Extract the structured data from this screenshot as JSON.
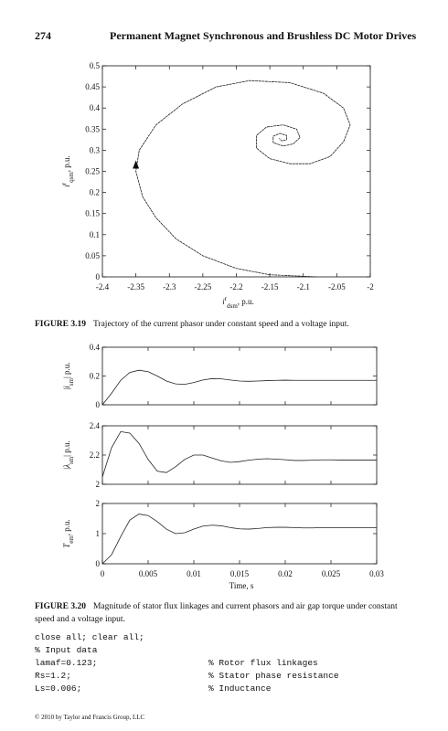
{
  "header": {
    "page_number": "274",
    "title": "Permanent Magnet Synchronous and Brushless DC Motor Drives"
  },
  "chart_data": [
    {
      "type": "line",
      "xlabel": {
        "base": "i",
        "sup": "r",
        "sub": "dsm",
        "unit": ", p.u."
      },
      "ylabel": {
        "base": "i",
        "sup": "r",
        "sub": "qsm",
        "unit": ", p.u."
      },
      "x": [
        -2.08,
        -2.15,
        -2.2,
        -2.25,
        -2.29,
        -2.32,
        -2.34,
        -2.35,
        -2.345,
        -2.32,
        -2.28,
        -2.23,
        -2.18,
        -2.12,
        -2.07,
        -2.04,
        -2.03,
        -2.04,
        -2.06,
        -2.09,
        -2.12,
        -2.15,
        -2.17,
        -2.17,
        -2.155,
        -2.13,
        -2.11,
        -2.105,
        -2.115,
        -2.13,
        -2.145,
        -2.145,
        -2.135,
        -2.125,
        -2.125,
        -2.132,
        -2.136
      ],
      "values": [
        0,
        0.005,
        0.02,
        0.05,
        0.09,
        0.14,
        0.19,
        0.25,
        0.3,
        0.36,
        0.41,
        0.45,
        0.465,
        0.46,
        0.435,
        0.4,
        0.36,
        0.32,
        0.285,
        0.268,
        0.268,
        0.28,
        0.305,
        0.335,
        0.355,
        0.36,
        0.35,
        0.33,
        0.315,
        0.31,
        0.318,
        0.333,
        0.34,
        0.335,
        0.325,
        0.322,
        0.328
      ],
      "color": "#222222",
      "xlim": [
        -2.4,
        -2
      ],
      "xticks": [
        -2.4,
        -2.35,
        -2.3,
        -2.25,
        -2.2,
        -2.15,
        -2.1,
        -2.05,
        -2
      ],
      "ylim": [
        0,
        0.5
      ],
      "yticks": [
        0,
        0.05,
        0.1,
        0.15,
        0.2,
        0.25,
        0.3,
        0.35,
        0.4,
        0.45,
        0.5
      ]
    },
    {
      "type": "line",
      "ylabel": {
        "prefix": "|",
        "base": "i",
        "sub": "sm",
        "unit": "| p.u."
      },
      "x": [
        0,
        0.001,
        0.002,
        0.003,
        0.004,
        0.005,
        0.006,
        0.007,
        0.008,
        0.009,
        0.01,
        0.011,
        0.012,
        0.013,
        0.014,
        0.015,
        0.016,
        0.017,
        0.018,
        0.019,
        0.02,
        0.021,
        0.022,
        0.023,
        0.024,
        0.025,
        0.026,
        0.027,
        0.028,
        0.029,
        0.03
      ],
      "values": [
        0,
        0.08,
        0.17,
        0.225,
        0.24,
        0.23,
        0.2,
        0.165,
        0.145,
        0.142,
        0.155,
        0.172,
        0.182,
        0.18,
        0.172,
        0.165,
        0.163,
        0.165,
        0.168,
        0.17,
        0.171,
        0.17,
        0.17,
        0.17,
        0.17,
        0.17,
        0.17,
        0.17,
        0.17,
        0.17,
        0.17
      ],
      "color": "#222222",
      "show_xtick_labels": false,
      "xlim": [
        0,
        0.03
      ],
      "xticks": [
        0,
        0.005,
        0.01,
        0.015,
        0.02,
        0.025,
        0.03
      ],
      "ylim": [
        0,
        0.4
      ],
      "yticks": [
        0,
        0.2,
        0.4
      ]
    },
    {
      "type": "line",
      "ylabel": {
        "prefix": "|",
        "base": "λ",
        "sub": "sm",
        "unit": "| p.u."
      },
      "x": [
        0,
        0.001,
        0.002,
        0.003,
        0.004,
        0.005,
        0.006,
        0.007,
        0.008,
        0.009,
        0.01,
        0.011,
        0.012,
        0.013,
        0.014,
        0.015,
        0.016,
        0.017,
        0.018,
        0.019,
        0.02,
        0.021,
        0.022,
        0.023,
        0.024,
        0.025,
        0.026,
        0.027,
        0.028,
        0.029,
        0.03
      ],
      "values": [
        2.05,
        2.25,
        2.36,
        2.35,
        2.28,
        2.17,
        2.09,
        2.08,
        2.12,
        2.17,
        2.2,
        2.2,
        2.18,
        2.16,
        2.15,
        2.155,
        2.165,
        2.172,
        2.175,
        2.172,
        2.168,
        2.163,
        2.163,
        2.165,
        2.167,
        2.167,
        2.166,
        2.166,
        2.166,
        2.166,
        2.166
      ],
      "color": "#222222",
      "show_xtick_labels": false,
      "xlim": [
        0,
        0.03
      ],
      "xticks": [
        0,
        0.005,
        0.01,
        0.015,
        0.02,
        0.025,
        0.03
      ],
      "ylim": [
        2,
        2.4
      ],
      "yticks": [
        2,
        2.2,
        2.4
      ]
    },
    {
      "type": "line",
      "xlabel": {
        "base": "Time, s"
      },
      "ylabel": {
        "base": "T",
        "sub": "em",
        "unit": ", p.u."
      },
      "x": [
        0,
        0.001,
        0.002,
        0.003,
        0.004,
        0.005,
        0.006,
        0.007,
        0.008,
        0.009,
        0.01,
        0.011,
        0.012,
        0.013,
        0.014,
        0.015,
        0.016,
        0.017,
        0.018,
        0.019,
        0.02,
        0.021,
        0.022,
        0.023,
        0.024,
        0.025,
        0.026,
        0.027,
        0.028,
        0.029,
        0.03
      ],
      "values": [
        0,
        0.3,
        0.9,
        1.45,
        1.65,
        1.6,
        1.4,
        1.15,
        1,
        1.03,
        1.15,
        1.25,
        1.28,
        1.26,
        1.2,
        1.16,
        1.15,
        1.17,
        1.2,
        1.21,
        1.21,
        1.2,
        1.19,
        1.19,
        1.2,
        1.2,
        1.2,
        1.2,
        1.2,
        1.2,
        1.2
      ],
      "color": "#222222",
      "xlim": [
        0,
        0.03
      ],
      "xticks": [
        0,
        0.005,
        0.01,
        0.015,
        0.02,
        0.025,
        0.03
      ],
      "ylim": [
        0,
        2
      ],
      "yticks": [
        0,
        1,
        2
      ]
    }
  ],
  "figures": [
    {
      "label": "FIGURE 3.19",
      "text": "Trajectory of the current phasor under constant speed and a voltage input."
    },
    {
      "label": "FIGURE 3.20",
      "text": "Magnitude of stator flux linkages and current phasors and air gap torque under constant speed and a voltage input."
    }
  ],
  "code": [
    {
      "code": "close all; clear all;"
    },
    {
      "code": "% Input data"
    },
    {
      "code": "lamaf=0.123;",
      "comment": "% Rotor flux linkages"
    },
    {
      "code": "Rs=1.2;",
      "comment": "% Stator phase resistance"
    },
    {
      "code": "Ls=0.006;",
      "comment": "% Inductance"
    }
  ],
  "footer": "© 2010 by Taylor and Francis Group, LLC"
}
